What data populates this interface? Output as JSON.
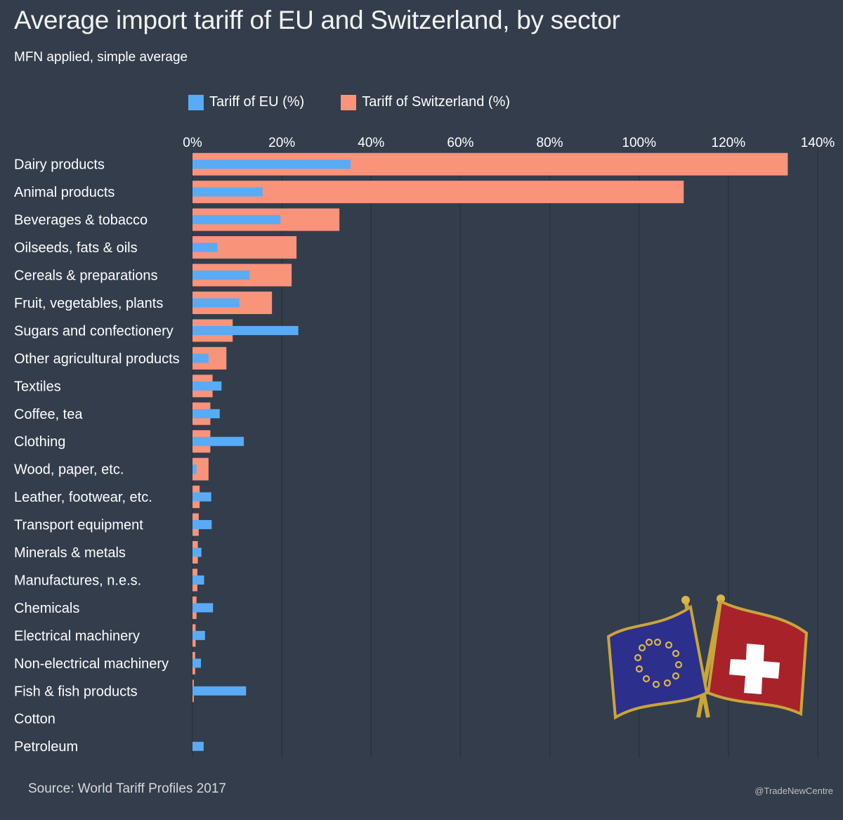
{
  "title": "Average import tariff of EU and Switzerland, by sector",
  "subtitle": "MFN applied, simple average",
  "legend": {
    "eu": "Tariff of EU (%)",
    "ch": "Tariff of Switzerland (%)"
  },
  "source": "Source: World Tariff Profiles 2017",
  "credit": "@TradeNewCentre",
  "colors": {
    "eu": "#5aabf5",
    "ch": "#f9937a",
    "background": "#333d4c",
    "grid": "#2b3340"
  },
  "chart_data": {
    "type": "bar",
    "orientation": "horizontal",
    "categories": [
      "Dairy products",
      "Animal products",
      "Beverages & tobacco",
      "Oilseeds, fats & oils",
      "Cereals & preparations",
      "Fruit, vegetables, plants",
      "Sugars and confectionery",
      "Other agricultural products",
      "Textiles",
      "Coffee, tea",
      "Clothing",
      "Wood, paper, etc.",
      "Leather, footwear, etc.",
      "Transport equipment",
      "Minerals & metals",
      "Manufactures, n.e.s.",
      "Chemicals",
      "Electrical machinery",
      "Non-electrical machinery",
      "Fish & fish products",
      "Cotton",
      "Petroleum"
    ],
    "series": [
      {
        "name": "Tariff of EU (%)",
        "values": [
          35.4,
          15.7,
          19.7,
          5.6,
          12.8,
          10.5,
          23.7,
          3.6,
          6.5,
          6.1,
          11.5,
          0.9,
          4.2,
          4.3,
          2.0,
          2.6,
          4.6,
          2.8,
          1.9,
          12.0,
          0.0,
          2.5
        ]
      },
      {
        "name": "Tariff of Switzerland (%)",
        "values": [
          133.3,
          110.0,
          32.9,
          23.3,
          22.2,
          17.8,
          9.0,
          7.6,
          4.5,
          4.0,
          4.0,
          3.6,
          1.6,
          1.4,
          1.2,
          1.1,
          0.9,
          0.7,
          0.6,
          0.3,
          0.0,
          0.0
        ]
      }
    ],
    "xlim": [
      0,
      140
    ],
    "xticks": [
      0,
      20,
      40,
      60,
      80,
      100,
      120,
      140
    ],
    "xtick_labels": [
      "0%",
      "20%",
      "40%",
      "60%",
      "80%",
      "100%",
      "120%",
      "140%"
    ],
    "grid": true,
    "legend_position": "top"
  }
}
